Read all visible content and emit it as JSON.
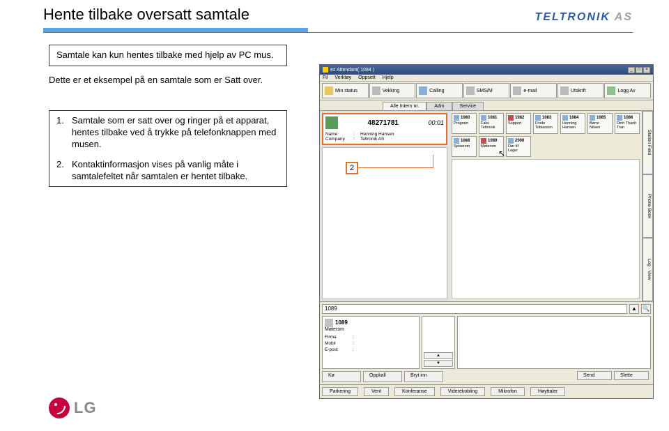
{
  "doc": {
    "title": "Hente tilbake oversatt samtale",
    "logo": "TELTRONIK",
    "logo_suffix": "AS",
    "lg": "LG",
    "info1": "Samtale kan kun hentes tilbake med hjelp av PC mus.",
    "desc": "Dette er et eksempel på en samtale som er Satt over.",
    "step1_num": "1.",
    "step1": "Samtale som er satt over og ringer på et apparat, hentes tilbake ved å trykke på telefonknappen med musen.",
    "step2_num": "2.",
    "step2": "Kontaktinformasjon vises på vanlig måte i samtalefeltet når samtalen er hentet tilbake."
  },
  "callout2": "2",
  "app": {
    "title": "ez Attendant( 1084 )",
    "menu": {
      "m1": "Fil",
      "m2": "Verktøy",
      "m3": "Oppsett",
      "m4": "Hjelp"
    },
    "toolbar": {
      "b1": "Min status",
      "b2": "Vekking",
      "b3": "Calling",
      "b4": "SMS/M",
      "b5": "e-mail",
      "b6": "Utskrift",
      "b7": "Logg Av"
    },
    "tabs": {
      "t1": "Alle Intern nr.",
      "t2": "Adm",
      "t3": "Service"
    },
    "sidetabs": {
      "s1": "Station Field",
      "s2": "Phone Book",
      "s3": "Log · View"
    },
    "call": {
      "number": "48271781",
      "time": "00:01",
      "name_lbl": "Name",
      "name_val": "Henning Hansen",
      "comp_lbl": "Company",
      "comp_val": "Teltronik AS"
    },
    "ext": {
      "r1": [
        {
          "n": "1080",
          "name": "Program"
        },
        {
          "n": "1081",
          "name": "Faks Teltronik"
        },
        {
          "n": "1082",
          "name": "Support"
        },
        {
          "n": "1083",
          "name": "Frode Tobiasson"
        },
        {
          "n": "1084",
          "name": "Henning Hansen"
        },
        {
          "n": "1085",
          "name": "Børre Nilsen"
        },
        {
          "n": "1086",
          "name": "Dinh Thanh Tran"
        }
      ],
      "r2": [
        {
          "n": "1088",
          "name": "Spiserom"
        },
        {
          "n": "1089",
          "name": "Møterom"
        },
        {
          "n": "2000",
          "name": "Dør tlf Lager"
        }
      ]
    },
    "search": "1089",
    "detail": {
      "num": "1089",
      "name": "Møterom",
      "f1": "Firma",
      "f2": "Mobil",
      "f3": "E-post"
    },
    "btns_row1": {
      "b1": "Kø",
      "b2": "Oppkall",
      "b3": "Bryt inn"
    },
    "btns_send": {
      "b1": "Send",
      "b2": "Slette"
    },
    "btns_row2": {
      "b1": "Parkering",
      "b2": "Vent",
      "b3": "Konferanse",
      "b4": "Viderekobling",
      "b5": "Mikrofon",
      "b6": "Høyttaler"
    }
  }
}
